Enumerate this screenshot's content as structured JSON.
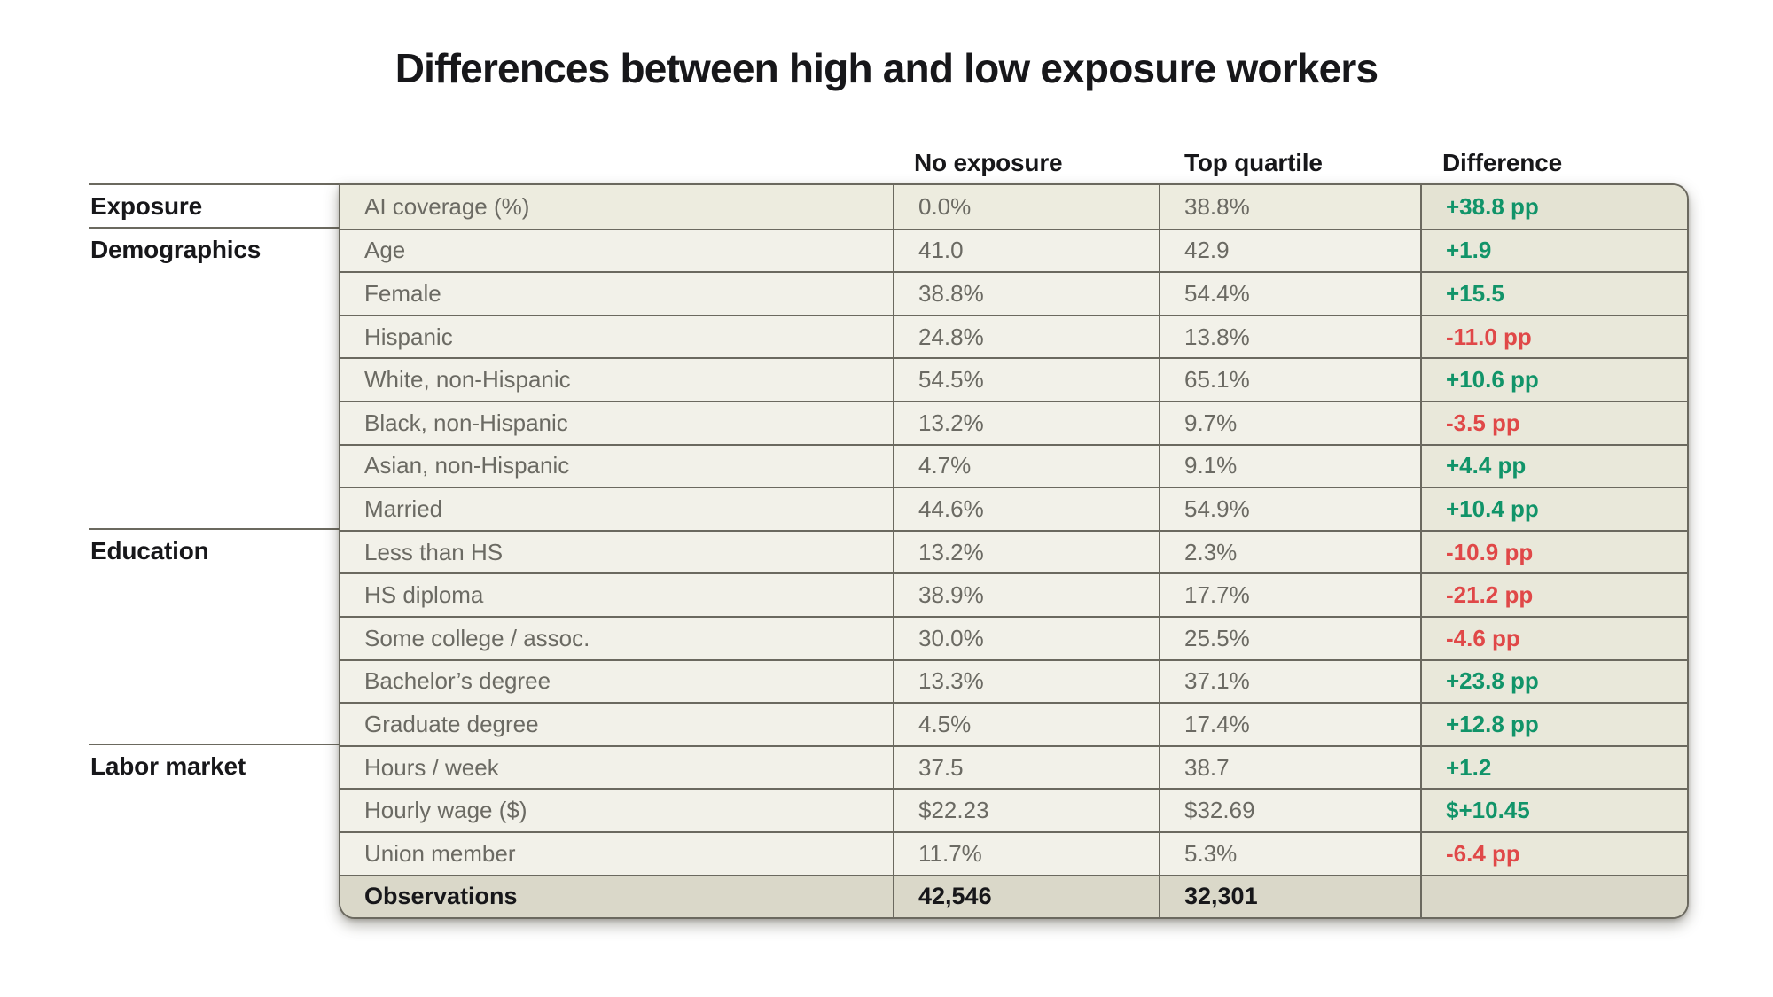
{
  "page": {
    "title": "Differences between high and low exposure workers"
  },
  "colors": {
    "positive": "#119469",
    "negative": "#e04848",
    "table_border": "#6b695f",
    "cell_background": "#f2f1e9",
    "difference_column_background": "#e9e8da",
    "totals_row_background": "#dad8c9"
  },
  "chart_data": {
    "type": "table",
    "title": "Differences between high and low exposure workers",
    "column_headers": [
      "No exposure",
      "Top quartile",
      "Difference"
    ],
    "groups": [
      {
        "label": "Exposure",
        "rows": [
          {
            "metric": "AI coverage (%)",
            "no_exposure": "0.0%",
            "top_quartile": "38.8%",
            "difference": "+38.8 pp",
            "direction": "up",
            "highlight": true
          }
        ]
      },
      {
        "label": "Demographics",
        "rows": [
          {
            "metric": "Age",
            "no_exposure": "41.0",
            "top_quartile": "42.9",
            "difference": "+1.9",
            "direction": "up"
          },
          {
            "metric": "Female",
            "no_exposure": "38.8%",
            "top_quartile": "54.4%",
            "difference": "+15.5",
            "direction": "up"
          },
          {
            "metric": "Hispanic",
            "no_exposure": "24.8%",
            "top_quartile": "13.8%",
            "difference": "-11.0 pp",
            "direction": "down"
          },
          {
            "metric": "White, non-Hispanic",
            "no_exposure": "54.5%",
            "top_quartile": "65.1%",
            "difference": "+10.6 pp",
            "direction": "up"
          },
          {
            "metric": "Black, non-Hispanic",
            "no_exposure": "13.2%",
            "top_quartile": "9.7%",
            "difference": "-3.5 pp",
            "direction": "down"
          },
          {
            "metric": "Asian, non-Hispanic",
            "no_exposure": "4.7%",
            "top_quartile": "9.1%",
            "difference": "+4.4 pp",
            "direction": "up"
          },
          {
            "metric": "Married",
            "no_exposure": "44.6%",
            "top_quartile": "54.9%",
            "difference": "+10.4 pp",
            "direction": "up"
          }
        ]
      },
      {
        "label": "Education",
        "rows": [
          {
            "metric": "Less than HS",
            "no_exposure": "13.2%",
            "top_quartile": "2.3%",
            "difference": "-10.9 pp",
            "direction": "down"
          },
          {
            "metric": "HS diploma",
            "no_exposure": "38.9%",
            "top_quartile": "17.7%",
            "difference": "-21.2 pp",
            "direction": "down"
          },
          {
            "metric": "Some college / assoc.",
            "no_exposure": "30.0%",
            "top_quartile": "25.5%",
            "difference": "-4.6 pp",
            "direction": "down"
          },
          {
            "metric": "Bachelor’s degree",
            "no_exposure": "13.3%",
            "top_quartile": "37.1%",
            "difference": "+23.8 pp",
            "direction": "up"
          },
          {
            "metric": "Graduate degree",
            "no_exposure": "4.5%",
            "top_quartile": "17.4%",
            "difference": "+12.8 pp",
            "direction": "up"
          }
        ]
      },
      {
        "label": "Labor market",
        "rows": [
          {
            "metric": "Hours / week",
            "no_exposure": "37.5",
            "top_quartile": "38.7",
            "difference": "+1.2",
            "direction": "up"
          },
          {
            "metric": "Hourly wage ($)",
            "no_exposure": "$22.23",
            "top_quartile": "$32.69",
            "difference": "$+10.45",
            "direction": "up"
          },
          {
            "metric": "Union member",
            "no_exposure": "11.7%",
            "top_quartile": "5.3%",
            "difference": "-6.4 pp",
            "direction": "down"
          },
          {
            "metric": "Observations",
            "no_exposure": "42,546",
            "top_quartile": "32,301",
            "difference": "",
            "direction": "none",
            "emphasis": true
          }
        ]
      }
    ]
  }
}
